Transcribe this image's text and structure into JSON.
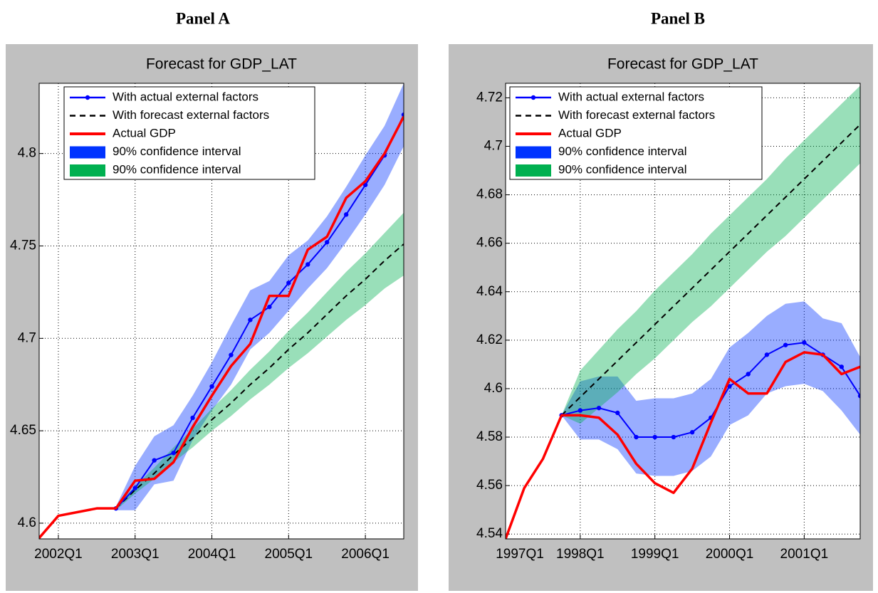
{
  "chart_data": [
    {
      "type": "line",
      "panel_title": "Panel A",
      "title": "Forecast for GDP_LAT",
      "grid": true,
      "categories": [
        null,
        "2002Q1",
        null,
        null,
        null,
        "2003Q1",
        null,
        null,
        null,
        "2004Q1",
        null,
        null,
        null,
        "2005Q1",
        null,
        null,
        null,
        "2006Q1",
        null,
        null
      ],
      "ylim": [
        4.5915,
        4.838
      ],
      "yticks": [
        4.6,
        4.65,
        4.7,
        4.75,
        4.8
      ],
      "series": [
        {
          "name": "With actual external factors",
          "color": "#0000ff",
          "marker": "dot",
          "values": [
            null,
            null,
            null,
            null,
            4.608,
            4.619,
            4.634,
            4.638,
            4.657,
            4.674,
            4.691,
            4.71,
            4.717,
            4.73,
            4.74,
            4.752,
            4.767,
            4.783,
            4.799,
            4.821
          ]
        },
        {
          "name": "With forecast external factors",
          "color": "#000000",
          "dash": true,
          "values": [
            null,
            null,
            null,
            null,
            4.608,
            4.618,
            4.627,
            4.637,
            4.646,
            4.656,
            4.665,
            4.675,
            4.684,
            4.694,
            4.703,
            4.713,
            4.723,
            4.732,
            4.742,
            4.751
          ]
        },
        {
          "name": "Actual GDP",
          "color": "#ff0000",
          "values": [
            4.592,
            4.604,
            4.606,
            4.608,
            4.608,
            4.623,
            4.624,
            4.633,
            4.652,
            4.669,
            4.685,
            4.697,
            4.723,
            4.723,
            4.748,
            4.755,
            4.776,
            4.785,
            4.8,
            4.82
          ]
        },
        {
          "name": "90% confidence interval",
          "color": "#0033ff",
          "lower": [
            null,
            null,
            null,
            null,
            4.607,
            4.607,
            4.621,
            4.623,
            4.645,
            4.661,
            4.675,
            4.694,
            4.703,
            4.715,
            4.727,
            4.738,
            4.752,
            4.767,
            4.783,
            4.804
          ],
          "upper": [
            null,
            null,
            null,
            null,
            4.609,
            4.631,
            4.647,
            4.653,
            4.669,
            4.687,
            4.707,
            4.726,
            4.731,
            4.745,
            4.753,
            4.766,
            4.782,
            4.799,
            4.815,
            4.838
          ]
        },
        {
          "name": "90% confidence interval",
          "color": "#00b050",
          "lower": [
            null,
            null,
            null,
            null,
            4.607,
            4.616,
            4.624,
            4.633,
            4.641,
            4.65,
            4.658,
            4.667,
            4.675,
            4.684,
            4.692,
            4.701,
            4.71,
            4.718,
            4.727,
            4.734
          ],
          "upper": [
            null,
            null,
            null,
            null,
            4.609,
            4.62,
            4.63,
            4.641,
            4.651,
            4.662,
            4.672,
            4.683,
            4.693,
            4.704,
            4.714,
            4.725,
            4.736,
            4.746,
            4.757,
            4.768
          ]
        }
      ]
    },
    {
      "type": "line",
      "panel_title": "Panel B",
      "title": "Forecast for GDP_LAT",
      "grid": true,
      "categories": [
        "1997Q1",
        null,
        null,
        null,
        "1998Q1",
        null,
        null,
        null,
        "1999Q1",
        null,
        null,
        null,
        "2000Q1",
        null,
        null,
        null,
        "2001Q1",
        null,
        null,
        null
      ],
      "ylim": [
        4.538,
        4.726
      ],
      "yticks": [
        4.54,
        4.56,
        4.58,
        4.6,
        4.62,
        4.64,
        4.66,
        4.68,
        4.7,
        4.72
      ],
      "series": [
        {
          "name": "With actual external factors",
          "color": "#0000ff",
          "marker": "dot",
          "values": [
            null,
            null,
            null,
            4.589,
            4.591,
            4.592,
            4.59,
            4.58,
            4.58,
            4.58,
            4.582,
            4.588,
            4.601,
            4.606,
            4.614,
            4.618,
            4.619,
            4.614,
            4.609,
            4.597
          ]
        },
        {
          "name": "With forecast external factors",
          "color": "#000000",
          "dash": true,
          "values": [
            null,
            null,
            null,
            4.589,
            4.5965,
            4.604,
            4.6115,
            4.619,
            4.6265,
            4.634,
            4.6415,
            4.649,
            4.6565,
            4.664,
            4.6715,
            4.679,
            4.6865,
            4.694,
            4.7015,
            4.709
          ]
        },
        {
          "name": "Actual GDP",
          "color": "#ff0000",
          "values": [
            4.538,
            4.559,
            4.571,
            4.589,
            4.589,
            4.588,
            4.581,
            4.569,
            4.561,
            4.557,
            4.567,
            4.586,
            4.604,
            4.598,
            4.598,
            4.611,
            4.615,
            4.614,
            4.606,
            4.609
          ]
        },
        {
          "name": "90% confidence interval",
          "color": "#0033ff",
          "lower": [
            null,
            null,
            null,
            4.589,
            4.579,
            4.579,
            4.575,
            4.565,
            4.564,
            4.564,
            4.566,
            4.572,
            4.585,
            4.589,
            4.598,
            4.601,
            4.602,
            4.599,
            4.591,
            4.581
          ],
          "upper": [
            null,
            null,
            null,
            4.589,
            4.603,
            4.605,
            4.605,
            4.595,
            4.596,
            4.596,
            4.598,
            4.604,
            4.617,
            4.623,
            4.63,
            4.635,
            4.636,
            4.629,
            4.627,
            4.613
          ]
        },
        {
          "name": "90% confidence interval",
          "color": "#00b050",
          "lower": [
            null,
            null,
            null,
            4.589,
            4.5855,
            4.592,
            4.5985,
            4.606,
            4.6125,
            4.62,
            4.6275,
            4.634,
            4.6415,
            4.649,
            4.6565,
            4.663,
            4.6705,
            4.678,
            4.6855,
            4.693
          ],
          "upper": [
            null,
            null,
            null,
            4.589,
            4.6075,
            4.616,
            4.6245,
            4.632,
            4.6405,
            4.648,
            4.6555,
            4.664,
            4.6715,
            4.679,
            4.6865,
            4.695,
            4.7025,
            4.71,
            4.7175,
            4.725
          ]
        }
      ]
    }
  ]
}
